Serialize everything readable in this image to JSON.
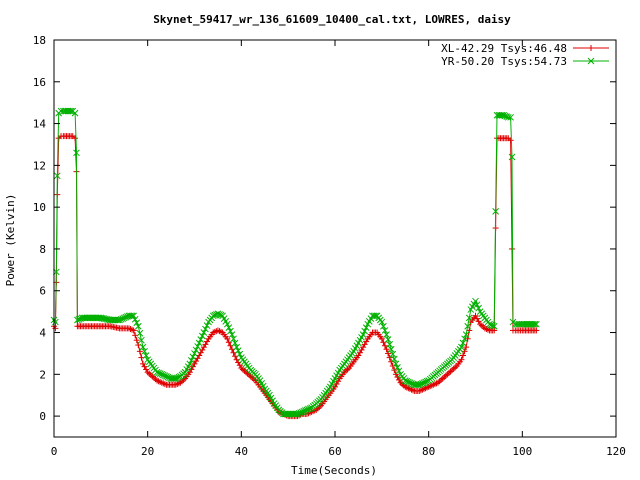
{
  "chart_data": {
    "type": "line",
    "title": "Skynet_59417_wr_136_61609_10400_cal.txt, LOWRES, daisy",
    "xlabel": "Time(Seconds)",
    "ylabel": "Power (Kelvin)",
    "xlim": [
      0,
      120
    ],
    "ylim": [
      -1,
      18
    ],
    "xticks": [
      0,
      20,
      40,
      60,
      80,
      100,
      120
    ],
    "yticks": [
      0,
      2,
      4,
      6,
      8,
      10,
      12,
      14,
      16,
      18
    ],
    "grid": false,
    "legend_position": "top-right",
    "series": [
      {
        "name": "XL-42.29 Tsys:46.48",
        "color": "#e00000",
        "marker": "plus",
        "x": [
          0.0,
          0.3,
          0.5,
          0.7,
          1.0,
          1.5,
          2.0,
          3.0,
          4.0,
          4.5,
          4.8,
          5.0,
          6.0,
          8.0,
          10.0,
          12.0,
          14.0,
          16.0,
          17.0,
          18.0,
          19.0,
          20.0,
          21.0,
          22.0,
          23.0,
          24.0,
          25.0,
          26.0,
          27.0,
          28.0,
          29.0,
          30.0,
          31.0,
          32.0,
          33.0,
          34.0,
          35.0,
          36.0,
          37.0,
          38.0,
          39.0,
          40.0,
          41.0,
          42.0,
          43.0,
          44.0,
          45.0,
          46.0,
          47.0,
          48.0,
          49.0,
          50.0,
          51.0,
          52.0,
          53.0,
          54.0,
          55.0,
          56.0,
          57.0,
          58.0,
          59.0,
          60.0,
          61.0,
          62.0,
          63.0,
          64.0,
          65.0,
          66.0,
          67.0,
          68.0,
          69.0,
          70.0,
          71.0,
          72.0,
          73.0,
          74.0,
          75.0,
          76.0,
          77.0,
          78.0,
          79.0,
          80.0,
          81.0,
          82.0,
          83.0,
          84.0,
          85.0,
          86.0,
          87.0,
          88.0,
          89.0,
          90.0,
          91.0,
          92.0,
          93.0,
          94.0,
          94.3,
          94.6,
          95.0,
          96.0,
          97.0,
          97.5,
          97.8,
          98.0,
          98.5,
          100.0,
          102.0,
          103.0
        ],
        "y": [
          4.3,
          4.2,
          6.4,
          10.6,
          13.3,
          13.4,
          13.4,
          13.4,
          13.4,
          13.3,
          11.7,
          4.3,
          4.3,
          4.3,
          4.3,
          4.3,
          4.2,
          4.2,
          4.1,
          3.4,
          2.5,
          2.1,
          1.9,
          1.7,
          1.6,
          1.5,
          1.5,
          1.5,
          1.6,
          1.8,
          2.1,
          2.5,
          2.9,
          3.3,
          3.7,
          4.0,
          4.1,
          4.0,
          3.7,
          3.2,
          2.7,
          2.3,
          2.1,
          1.9,
          1.7,
          1.4,
          1.1,
          0.8,
          0.5,
          0.2,
          0.1,
          0.0,
          0.0,
          0.0,
          0.1,
          0.1,
          0.2,
          0.3,
          0.5,
          0.8,
          1.1,
          1.4,
          1.8,
          2.1,
          2.3,
          2.6,
          2.9,
          3.3,
          3.7,
          4.0,
          4.0,
          3.7,
          3.2,
          2.6,
          2.0,
          1.6,
          1.4,
          1.3,
          1.2,
          1.2,
          1.3,
          1.4,
          1.5,
          1.6,
          1.8,
          2.0,
          2.2,
          2.4,
          2.7,
          3.3,
          4.5,
          4.8,
          4.4,
          4.2,
          4.1,
          4.1,
          9.0,
          13.3,
          13.3,
          13.3,
          13.3,
          13.2,
          8.0,
          4.1,
          4.1,
          4.1,
          4.1,
          4.1
        ]
      },
      {
        "name": "YR-50.20 Tsys:54.73",
        "color": "#00b000",
        "marker": "cross",
        "x": [
          0.0,
          0.3,
          0.5,
          0.7,
          1.0,
          1.5,
          2.0,
          3.0,
          4.0,
          4.5,
          4.8,
          5.0,
          6.0,
          8.0,
          10.0,
          12.0,
          14.0,
          16.0,
          17.0,
          18.0,
          19.0,
          20.0,
          21.0,
          22.0,
          23.0,
          24.0,
          25.0,
          26.0,
          27.0,
          28.0,
          29.0,
          30.0,
          31.0,
          32.0,
          33.0,
          34.0,
          35.0,
          36.0,
          37.0,
          38.0,
          39.0,
          40.0,
          41.0,
          42.0,
          43.0,
          44.0,
          45.0,
          46.0,
          47.0,
          48.0,
          49.0,
          50.0,
          51.0,
          52.0,
          53.0,
          54.0,
          55.0,
          56.0,
          57.0,
          58.0,
          59.0,
          60.0,
          61.0,
          62.0,
          63.0,
          64.0,
          65.0,
          66.0,
          67.0,
          68.0,
          69.0,
          70.0,
          71.0,
          72.0,
          73.0,
          74.0,
          75.0,
          76.0,
          77.0,
          78.0,
          79.0,
          80.0,
          81.0,
          82.0,
          83.0,
          84.0,
          85.0,
          86.0,
          87.0,
          88.0,
          89.0,
          90.0,
          91.0,
          92.0,
          93.0,
          94.0,
          94.3,
          94.6,
          95.0,
          96.0,
          97.0,
          97.5,
          97.8,
          98.0,
          98.5,
          100.0,
          102.0,
          103.0
        ],
        "y": [
          4.6,
          4.5,
          6.9,
          11.5,
          14.5,
          14.6,
          14.6,
          14.6,
          14.6,
          14.5,
          12.6,
          4.6,
          4.7,
          4.7,
          4.7,
          4.6,
          4.6,
          4.8,
          4.8,
          4.3,
          3.3,
          2.7,
          2.4,
          2.1,
          2.0,
          1.9,
          1.8,
          1.8,
          1.9,
          2.1,
          2.5,
          3.0,
          3.5,
          4.0,
          4.5,
          4.8,
          4.9,
          4.8,
          4.4,
          3.9,
          3.3,
          2.8,
          2.5,
          2.2,
          2.0,
          1.7,
          1.3,
          1.0,
          0.6,
          0.3,
          0.1,
          0.1,
          0.1,
          0.1,
          0.2,
          0.3,
          0.4,
          0.6,
          0.8,
          1.1,
          1.4,
          1.8,
          2.2,
          2.5,
          2.8,
          3.1,
          3.5,
          3.9,
          4.4,
          4.8,
          4.8,
          4.5,
          3.9,
          3.2,
          2.5,
          2.0,
          1.7,
          1.6,
          1.5,
          1.5,
          1.6,
          1.7,
          1.9,
          2.1,
          2.3,
          2.5,
          2.7,
          3.0,
          3.3,
          3.9,
          5.1,
          5.5,
          5.0,
          4.7,
          4.4,
          4.3,
          9.8,
          14.4,
          14.4,
          14.4,
          14.3,
          14.3,
          12.4,
          4.5,
          4.4,
          4.4,
          4.4,
          4.4
        ]
      }
    ]
  }
}
